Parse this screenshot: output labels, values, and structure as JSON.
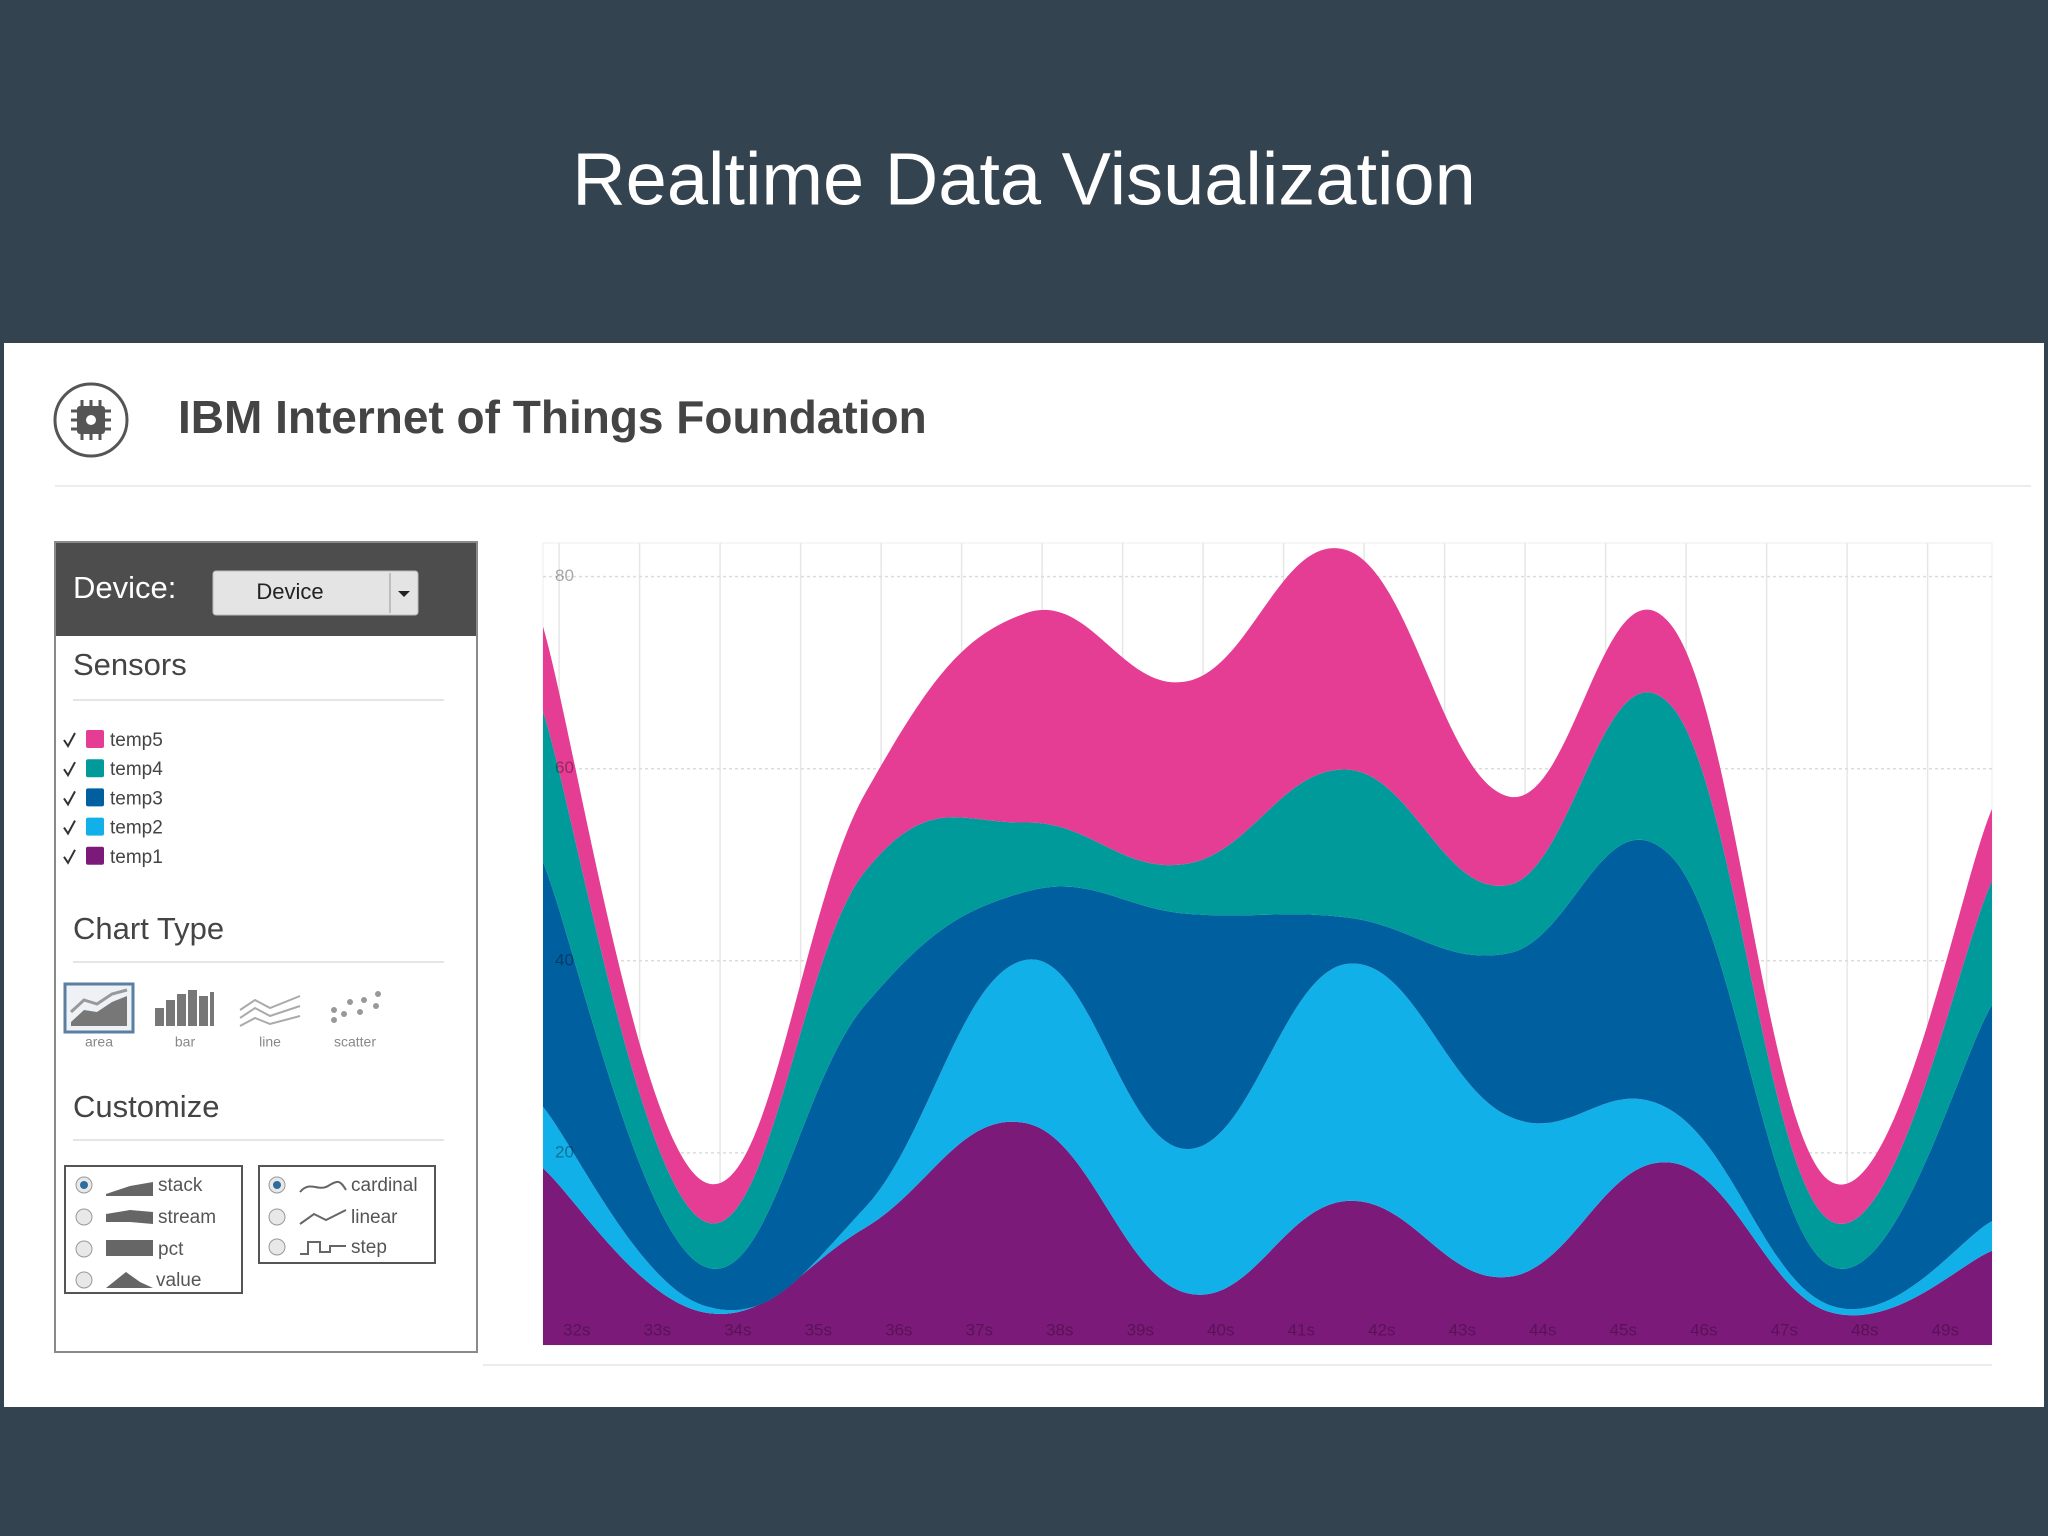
{
  "slide_title": "Realtime Data Visualization",
  "header": {
    "title": "IBM Internet of Things Foundation"
  },
  "sidebar": {
    "device_label": "Device:",
    "device_select": "Device",
    "sensors_title": "Sensors",
    "chart_type_title": "Chart Type",
    "chart_types": [
      "area",
      "bar",
      "line",
      "scatter"
    ],
    "customize_title": "Customize",
    "offset_options": [
      "stack",
      "stream",
      "pct",
      "value"
    ],
    "interpolation_options": [
      "cardinal",
      "linear",
      "step"
    ]
  },
  "chart_data": {
    "type": "area",
    "stacked": true,
    "interpolation": "cardinal",
    "grid": true,
    "x": [
      31.8,
      33.8,
      35.8,
      37.8,
      39.8,
      41.8,
      43.8,
      45.8,
      47.8,
      49.8
    ],
    "xlim": [
      31.8,
      49.8
    ],
    "xticks": [
      {
        "value": 32,
        "label": "32s"
      },
      {
        "value": 33,
        "label": "33s"
      },
      {
        "value": 34,
        "label": "34s"
      },
      {
        "value": 35,
        "label": "35s"
      },
      {
        "value": 36,
        "label": "36s"
      },
      {
        "value": 37,
        "label": "37s"
      },
      {
        "value": 38,
        "label": "38s"
      },
      {
        "value": 39,
        "label": "39s"
      },
      {
        "value": 40,
        "label": "40s"
      },
      {
        "value": 41,
        "label": "41s"
      },
      {
        "value": 42,
        "label": "42s"
      },
      {
        "value": 43,
        "label": "43s"
      },
      {
        "value": 44,
        "label": "44s"
      },
      {
        "value": 45,
        "label": "45s"
      },
      {
        "value": 46,
        "label": "46s"
      },
      {
        "value": 47,
        "label": "47s"
      },
      {
        "value": 48,
        "label": "48s"
      },
      {
        "value": 49,
        "label": "49s"
      }
    ],
    "ylim": [
      0,
      83.5
    ],
    "yticks": [
      20,
      40,
      60,
      80
    ],
    "series": [
      {
        "name": "temp1",
        "color": "#7b1a79",
        "values": [
          18.4,
          3.4,
          12.2,
          23.1,
          5.4,
          15.0,
          7.1,
          19.0,
          3.4,
          9.8
        ]
      },
      {
        "name": "temp2",
        "color": "#12b0e8",
        "values": [
          6.4,
          0.7,
          2.1,
          17.0,
          15.0,
          24.7,
          16.7,
          5.5,
          0.7,
          3.1
        ]
      },
      {
        "name": "temp3",
        "color": "#005f9e",
        "values": [
          25.5,
          4.1,
          21.1,
          7.1,
          24.5,
          4.8,
          17.0,
          26.5,
          4.1,
          22.5
        ]
      },
      {
        "name": "temp4",
        "color": "#009a9a",
        "values": [
          15.7,
          4.7,
          13.9,
          7.2,
          5.2,
          15.4,
          7.1,
          15.7,
          4.7,
          12.9
        ]
      },
      {
        "name": "temp5",
        "color": "#e43d93",
        "values": [
          8.8,
          4.1,
          8.1,
          21.8,
          19.0,
          22.8,
          9.2,
          8.4,
          4.1,
          7.5
        ]
      }
    ]
  }
}
